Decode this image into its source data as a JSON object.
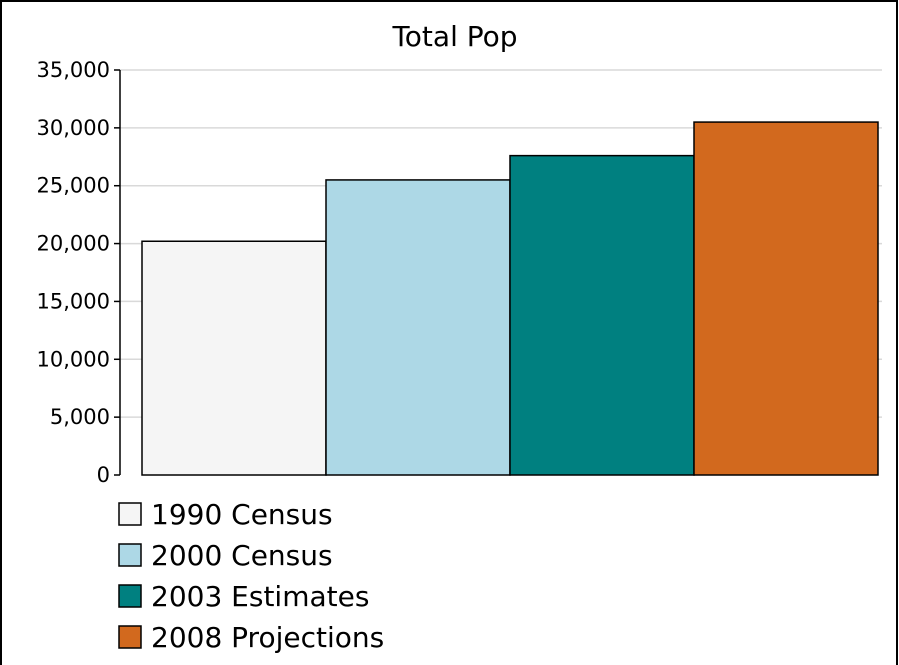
{
  "chart_data": {
    "type": "bar",
    "title": "Total Pop",
    "xlabel": "",
    "ylabel": "",
    "ylim": [
      0,
      35000
    ],
    "yticks": [
      "0",
      "5,000",
      "10,000",
      "15,000",
      "20,000",
      "25,000",
      "30,000",
      "35,000"
    ],
    "grid": true,
    "legend_position": "bottom-left",
    "series": [
      {
        "name": "1990 Census",
        "values": [
          20200
        ],
        "color": "#f5f5f5"
      },
      {
        "name": "2000 Census",
        "values": [
          25500
        ],
        "color": "#add8e6"
      },
      {
        "name": "2003 Estimates",
        "values": [
          27600
        ],
        "color": "#008080"
      },
      {
        "name": "2008 Projections",
        "values": [
          30500
        ],
        "color": "#d2691e"
      }
    ]
  }
}
